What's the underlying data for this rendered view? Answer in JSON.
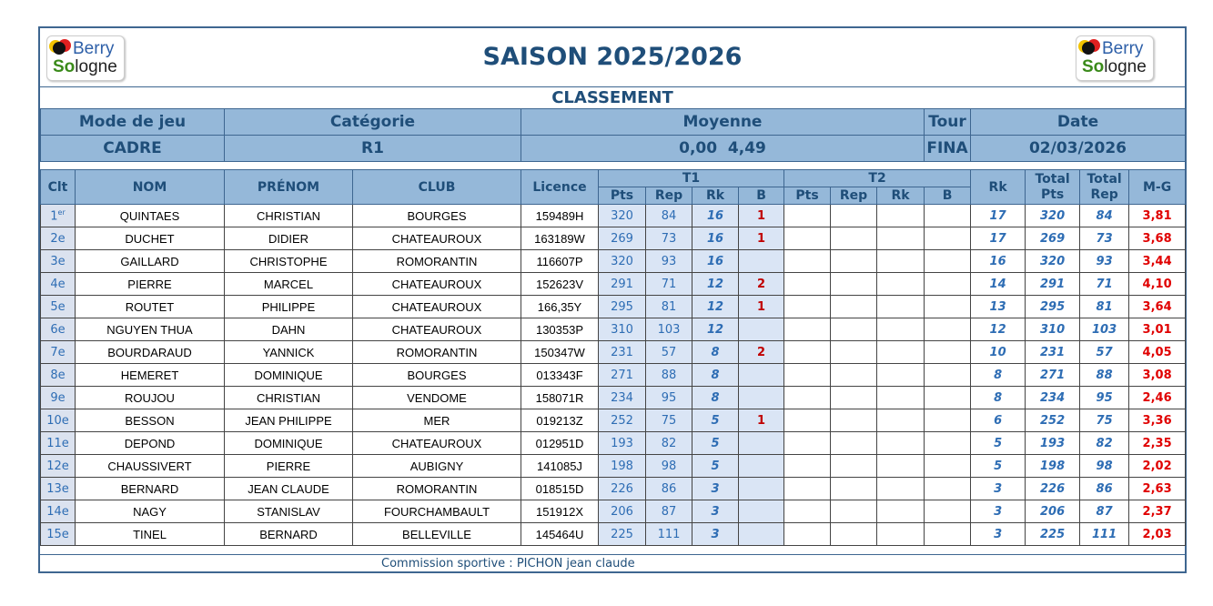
{
  "header": {
    "title": "SAISON 2025/2026",
    "subtitle": "CLASSEMENT",
    "logo_text": "Berry Sologne"
  },
  "info": {
    "labels": [
      "Mode de jeu",
      "Catégorie",
      "Moyenne",
      "Tour",
      "Date"
    ],
    "values": [
      "CADRE",
      "R1",
      "0,00  4,49",
      "FINA",
      "02/03/2026"
    ]
  },
  "columns": {
    "clt": "Clt",
    "nom": "NOM",
    "prenom": "PRÉNOM",
    "club": "CLUB",
    "licence": "Licence",
    "t1": "T1",
    "t2": "T2",
    "sub": [
      "Pts",
      "Rep",
      "Rk",
      "B"
    ],
    "rk": "Rk",
    "total_pts": "Total Pts",
    "total_rep": "Total Rep",
    "mg": "M-G"
  },
  "rows": [
    {
      "clt": "1er",
      "nom": "QUINTAES",
      "prenom": "CHRISTIAN",
      "club": "BOURGES",
      "licence": "159489H",
      "pts": "320",
      "rep": "84",
      "rk1": "16",
      "b": "1",
      "rk": "17",
      "tp": "320",
      "tr": "84",
      "mg": "3,81"
    },
    {
      "clt": "2e",
      "nom": "DUCHET",
      "prenom": "DIDIER",
      "club": "CHATEAUROUX",
      "licence": "163189W",
      "pts": "269",
      "rep": "73",
      "rk1": "16",
      "b": "1",
      "rk": "17",
      "tp": "269",
      "tr": "73",
      "mg": "3,68"
    },
    {
      "clt": "3e",
      "nom": "GAILLARD",
      "prenom": "CHRISTOPHE",
      "club": "ROMORANTIN",
      "licence": "116607P",
      "pts": "320",
      "rep": "93",
      "rk1": "16",
      "b": "",
      "rk": "16",
      "tp": "320",
      "tr": "93",
      "mg": "3,44"
    },
    {
      "clt": "4e",
      "nom": "PIERRE",
      "prenom": "MARCEL",
      "club": "CHATEAUROUX",
      "licence": "152623V",
      "pts": "291",
      "rep": "71",
      "rk1": "12",
      "b": "2",
      "rk": "14",
      "tp": "291",
      "tr": "71",
      "mg": "4,10"
    },
    {
      "clt": "5e",
      "nom": "ROUTET",
      "prenom": "PHILIPPE",
      "club": "CHATEAUROUX",
      "licence": "166,35Y",
      "pts": "295",
      "rep": "81",
      "rk1": "12",
      "b": "1",
      "rk": "13",
      "tp": "295",
      "tr": "81",
      "mg": "3,64"
    },
    {
      "clt": "6e",
      "nom": "NGUYEN THUA",
      "prenom": "DAHN",
      "club": "CHATEAUROUX",
      "licence": "130353P",
      "pts": "310",
      "rep": "103",
      "rk1": "12",
      "b": "",
      "rk": "12",
      "tp": "310",
      "tr": "103",
      "mg": "3,01"
    },
    {
      "clt": "7e",
      "nom": "BOURDARAUD",
      "prenom": "YANNICK",
      "club": "ROMORANTIN",
      "licence": "150347W",
      "pts": "231",
      "rep": "57",
      "rk1": "8",
      "b": "2",
      "rk": "10",
      "tp": "231",
      "tr": "57",
      "mg": "4,05"
    },
    {
      "clt": "8e",
      "nom": "HEMERET",
      "prenom": "DOMINIQUE",
      "club": "BOURGES",
      "licence": "013343F",
      "pts": "271",
      "rep": "88",
      "rk1": "8",
      "b": "",
      "rk": "8",
      "tp": "271",
      "tr": "88",
      "mg": "3,08"
    },
    {
      "clt": "9e",
      "nom": "ROUJOU",
      "prenom": "CHRISTIAN",
      "club": "VENDOME",
      "licence": "158071R",
      "pts": "234",
      "rep": "95",
      "rk1": "8",
      "b": "",
      "rk": "8",
      "tp": "234",
      "tr": "95",
      "mg": "2,46"
    },
    {
      "clt": "10e",
      "nom": "BESSON",
      "prenom": "JEAN PHILIPPE",
      "club": "MER",
      "licence": "019213Z",
      "pts": "252",
      "rep": "75",
      "rk1": "5",
      "b": "1",
      "rk": "6",
      "tp": "252",
      "tr": "75",
      "mg": "3,36"
    },
    {
      "clt": "11e",
      "nom": "DEPOND",
      "prenom": "DOMINIQUE",
      "club": "CHATEAUROUX",
      "licence": "012951D",
      "pts": "193",
      "rep": "82",
      "rk1": "5",
      "b": "",
      "rk": "5",
      "tp": "193",
      "tr": "82",
      "mg": "2,35"
    },
    {
      "clt": "12e",
      "nom": "CHAUSSIVERT",
      "prenom": "PIERRE",
      "club": "AUBIGNY",
      "licence": "141085J",
      "pts": "198",
      "rep": "98",
      "rk1": "5",
      "b": "",
      "rk": "5",
      "tp": "198",
      "tr": "98",
      "mg": "2,02"
    },
    {
      "clt": "13e",
      "nom": "BERNARD",
      "prenom": "JEAN CLAUDE",
      "club": "ROMORANTIN",
      "licence": "018515D",
      "pts": "226",
      "rep": "86",
      "rk1": "3",
      "b": "",
      "rk": "3",
      "tp": "226",
      "tr": "86",
      "mg": "2,63"
    },
    {
      "clt": "14e",
      "nom": "NAGY",
      "prenom": "STANISLAV",
      "club": "FOURCHAMBAULT",
      "licence": "151912X",
      "pts": "206",
      "rep": "87",
      "rk1": "3",
      "b": "",
      "rk": "3",
      "tp": "206",
      "tr": "87",
      "mg": "2,37"
    },
    {
      "clt": "15e",
      "nom": "TINEL",
      "prenom": "BERNARD",
      "club": "BELLEVILLE",
      "licence": "145464U",
      "pts": "225",
      "rep": "111",
      "rk1": "3",
      "b": "",
      "rk": "3",
      "tp": "225",
      "tr": "111",
      "mg": "2,03"
    }
  ],
  "footer": {
    "text": "Commission sportive : PICHON jean claude"
  }
}
